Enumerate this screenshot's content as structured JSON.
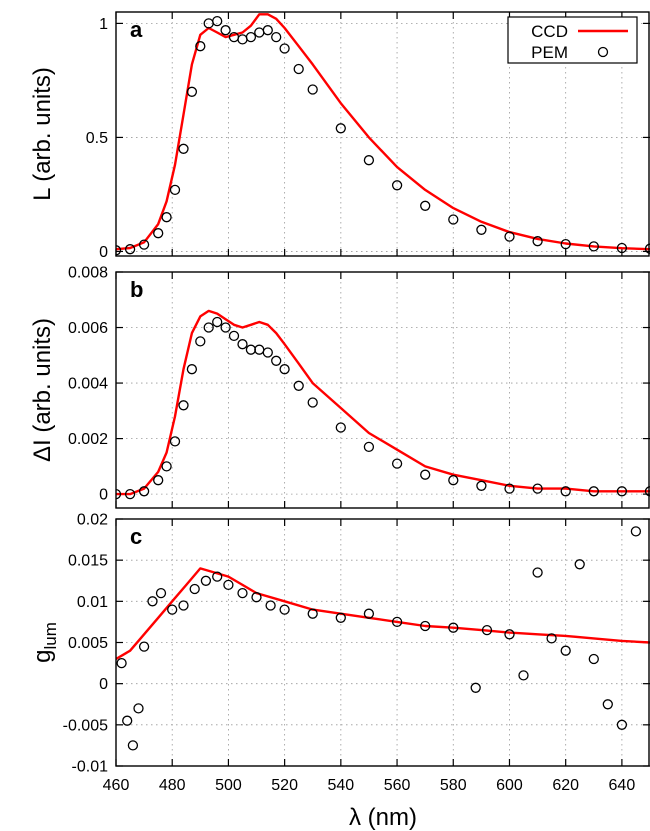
{
  "figure": {
    "x_axis_label": "λ (nm)",
    "x_ticks": [
      460,
      480,
      500,
      520,
      540,
      560,
      580,
      600,
      620,
      640
    ],
    "xlim": [
      460,
      650
    ]
  },
  "legend": {
    "placement": "top-right of panel a",
    "items": [
      {
        "label": "CCD",
        "symbol": "line",
        "color": "#ff0000"
      },
      {
        "label": "PEM",
        "symbol": "open-circle",
        "color": "#000000"
      }
    ]
  },
  "chart_data": [
    {
      "type": "line",
      "panel_label": "a",
      "ylabel": "L (arb. units)",
      "ylim": [
        -0.02,
        1.05
      ],
      "y_ticks": [
        0,
        0.5,
        1
      ],
      "y_tick_labels": [
        "0",
        "0.5",
        "1"
      ],
      "grid": true,
      "series": [
        {
          "name": "CCD",
          "style": "line",
          "color": "#ff0000",
          "x": [
            460,
            465,
            470,
            475,
            478,
            481,
            484,
            487,
            490,
            493,
            496,
            499,
            502,
            505,
            508,
            511,
            514,
            517,
            520,
            525,
            530,
            540,
            550,
            560,
            570,
            580,
            590,
            600,
            610,
            620,
            630,
            640,
            650
          ],
          "y": [
            0.01,
            0.015,
            0.04,
            0.12,
            0.22,
            0.38,
            0.6,
            0.82,
            0.95,
            0.98,
            0.96,
            0.94,
            0.95,
            0.96,
            0.99,
            1.04,
            1.04,
            1.02,
            0.98,
            0.9,
            0.82,
            0.65,
            0.5,
            0.37,
            0.27,
            0.19,
            0.13,
            0.085,
            0.055,
            0.035,
            0.022,
            0.014,
            0.01
          ]
        },
        {
          "name": "PEM",
          "style": "marker",
          "color": "#000000",
          "x": [
            460,
            465,
            470,
            475,
            478,
            481,
            484,
            487,
            490,
            493,
            496,
            499,
            502,
            505,
            508,
            511,
            514,
            517,
            520,
            525,
            530,
            540,
            550,
            560,
            570,
            580,
            590,
            600,
            610,
            620,
            630,
            640,
            650
          ],
          "y": [
            0.005,
            0.01,
            0.03,
            0.08,
            0.15,
            0.27,
            0.45,
            0.7,
            0.9,
            1.0,
            1.01,
            0.97,
            0.94,
            0.93,
            0.94,
            0.96,
            0.97,
            0.94,
            0.89,
            0.8,
            0.71,
            0.54,
            0.4,
            0.29,
            0.2,
            0.14,
            0.095,
            0.065,
            0.045,
            0.032,
            0.022,
            0.015,
            0.012
          ]
        }
      ]
    },
    {
      "type": "line",
      "panel_label": "b",
      "ylabel": "ΔI (arb. units)",
      "ylim": [
        -0.0005,
        0.008
      ],
      "y_ticks": [
        0,
        0.002,
        0.004,
        0.006,
        0.008
      ],
      "y_tick_labels": [
        "0",
        "0.002",
        "0.004",
        "0.006",
        "0.008"
      ],
      "grid": true,
      "series": [
        {
          "name": "CCD",
          "style": "line",
          "color": "#ff0000",
          "x": [
            460,
            465,
            470,
            475,
            478,
            481,
            484,
            487,
            490,
            493,
            496,
            499,
            502,
            505,
            508,
            511,
            514,
            517,
            520,
            525,
            530,
            540,
            550,
            560,
            570,
            580,
            590,
            600,
            610,
            620,
            630,
            640,
            650
          ],
          "y": [
            0.0,
            0.0,
            0.0002,
            0.0008,
            0.0015,
            0.0028,
            0.0045,
            0.0058,
            0.0064,
            0.0066,
            0.0065,
            0.0063,
            0.0061,
            0.006,
            0.0061,
            0.0062,
            0.0061,
            0.0058,
            0.0054,
            0.0047,
            0.004,
            0.0031,
            0.0022,
            0.0016,
            0.001,
            0.0007,
            0.0005,
            0.0003,
            0.0002,
            0.0002,
            0.0001,
            0.0001,
            0.0001
          ]
        },
        {
          "name": "PEM",
          "style": "marker",
          "color": "#000000",
          "x": [
            460,
            465,
            470,
            475,
            478,
            481,
            484,
            487,
            490,
            493,
            496,
            499,
            502,
            505,
            508,
            511,
            514,
            517,
            520,
            525,
            530,
            540,
            550,
            560,
            570,
            580,
            590,
            600,
            610,
            620,
            630,
            640,
            650
          ],
          "y": [
            0.0,
            0.0,
            0.0001,
            0.0005,
            0.001,
            0.0019,
            0.0032,
            0.0045,
            0.0055,
            0.006,
            0.0062,
            0.006,
            0.0057,
            0.0054,
            0.0052,
            0.0052,
            0.0051,
            0.0048,
            0.0045,
            0.0039,
            0.0033,
            0.0024,
            0.0017,
            0.0011,
            0.0007,
            0.0005,
            0.0003,
            0.0002,
            0.0002,
            0.0001,
            0.0001,
            0.0001,
            0.0001
          ]
        }
      ]
    },
    {
      "type": "line",
      "panel_label": "c",
      "ylabel": "g",
      "ylabel_subscript": "lum",
      "ylim": [
        -0.01,
        0.02
      ],
      "y_ticks": [
        -0.01,
        -0.005,
        0,
        0.005,
        0.01,
        0.015,
        0.02
      ],
      "y_tick_labels": [
        "-0.01",
        "-0.005",
        "0",
        "0.005",
        "0.01",
        "0.015",
        "0.02"
      ],
      "grid": true,
      "series": [
        {
          "name": "CCD",
          "style": "line",
          "color": "#ff0000",
          "x": [
            460,
            465,
            470,
            475,
            480,
            485,
            490,
            495,
            500,
            505,
            510,
            520,
            530,
            540,
            550,
            560,
            570,
            580,
            590,
            600,
            610,
            620,
            630,
            640,
            650
          ],
          "y": [
            0.003,
            0.004,
            0.006,
            0.008,
            0.01,
            0.012,
            0.014,
            0.0135,
            0.013,
            0.012,
            0.011,
            0.01,
            0.009,
            0.0085,
            0.008,
            0.0075,
            0.007,
            0.0068,
            0.0065,
            0.0062,
            0.006,
            0.0058,
            0.0055,
            0.0052,
            0.005
          ]
        },
        {
          "name": "PEM",
          "style": "marker",
          "color": "#000000",
          "x": [
            462,
            464,
            466,
            468,
            470,
            473,
            476,
            480,
            484,
            488,
            492,
            496,
            500,
            505,
            510,
            515,
            520,
            530,
            540,
            550,
            560,
            570,
            580,
            588,
            592,
            600,
            605,
            610,
            615,
            620,
            625,
            630,
            635,
            640,
            645
          ],
          "y": [
            0.0025,
            -0.0045,
            -0.0075,
            -0.003,
            0.0045,
            0.01,
            0.011,
            0.009,
            0.0095,
            0.0115,
            0.0125,
            0.013,
            0.012,
            0.011,
            0.0105,
            0.0095,
            0.009,
            0.0085,
            0.008,
            0.0085,
            0.0075,
            0.007,
            0.0068,
            -0.0005,
            0.0065,
            0.006,
            0.001,
            0.0135,
            0.0055,
            0.004,
            0.0145,
            0.003,
            -0.0025,
            -0.005,
            0.0185
          ]
        }
      ]
    }
  ]
}
